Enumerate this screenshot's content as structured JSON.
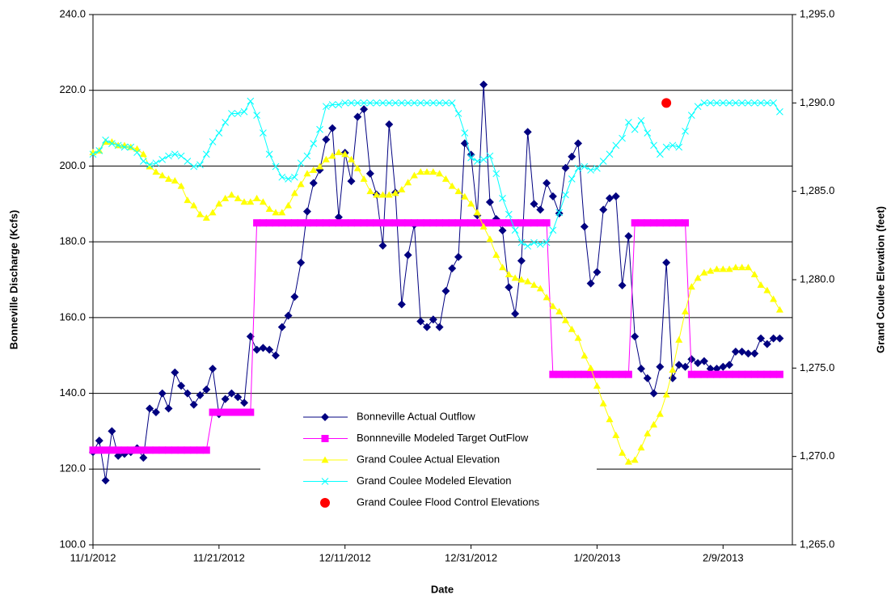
{
  "chart_data": {
    "type": "line",
    "xlabel": "Date",
    "ylabel": "Bonneville Discharge (Kcfs)",
    "y2label": "Grand Coulee Elevation (feet)",
    "x": [
      "11/1/2012",
      "11/2/2012",
      "11/3/2012",
      "11/4/2012",
      "11/5/2012",
      "11/6/2012",
      "11/7/2012",
      "11/8/2012",
      "11/9/2012",
      "11/10/2012",
      "11/11/2012",
      "11/12/2012",
      "11/13/2012",
      "11/14/2012",
      "11/15/2012",
      "11/16/2012",
      "11/17/2012",
      "11/18/2012",
      "11/19/2012",
      "11/20/2012",
      "11/21/2012",
      "11/22/2012",
      "11/23/2012",
      "11/24/2012",
      "11/25/2012",
      "11/26/2012",
      "11/27/2012",
      "11/28/2012",
      "11/29/2012",
      "11/30/2012",
      "12/1/2012",
      "12/2/2012",
      "12/3/2012",
      "12/4/2012",
      "12/5/2012",
      "12/6/2012",
      "12/7/2012",
      "12/8/2012",
      "12/9/2012",
      "12/10/2012",
      "12/11/2012",
      "12/12/2012",
      "12/13/2012",
      "12/14/2012",
      "12/15/2012",
      "12/16/2012",
      "12/17/2012",
      "12/18/2012",
      "12/19/2012",
      "12/20/2012",
      "12/21/2012",
      "12/22/2012",
      "12/23/2012",
      "12/24/2012",
      "12/25/2012",
      "12/26/2012",
      "12/27/2012",
      "12/28/2012",
      "12/29/2012",
      "12/30/2012",
      "12/31/2012",
      "1/1/2013",
      "1/2/2013",
      "1/3/2013",
      "1/4/2013",
      "1/5/2013",
      "1/6/2013",
      "1/7/2013",
      "1/8/2013",
      "1/9/2013",
      "1/10/2013",
      "1/11/2013",
      "1/12/2013",
      "1/13/2013",
      "1/14/2013",
      "1/15/2013",
      "1/16/2013",
      "1/17/2013",
      "1/18/2013",
      "1/19/2013",
      "1/20/2013",
      "1/21/2013",
      "1/22/2013",
      "1/23/2013",
      "1/24/2013",
      "1/25/2013",
      "1/26/2013",
      "1/27/2013",
      "1/28/2013",
      "1/29/2013",
      "1/30/2013",
      "1/31/2013",
      "2/1/2013",
      "2/2/2013",
      "2/3/2013",
      "2/4/2013",
      "2/5/2013",
      "2/6/2013",
      "2/7/2013",
      "2/8/2013",
      "2/9/2013",
      "2/10/2013",
      "2/11/2013",
      "2/12/2013",
      "2/13/2013",
      "2/14/2013",
      "2/15/2013",
      "2/16/2013",
      "2/17/2013",
      "2/18/2013"
    ],
    "xlim": [
      "11/1/2012",
      "2/20/2013"
    ],
    "xticks": [
      "11/1/2012",
      "11/21/2012",
      "12/11/2012",
      "12/31/2012",
      "1/20/2013",
      "2/9/2013"
    ],
    "ylim": [
      100,
      240
    ],
    "yticks": [
      {
        "value": 100,
        "label": "100.0"
      },
      {
        "value": 120,
        "label": "120.0"
      },
      {
        "value": 140,
        "label": "140.0"
      },
      {
        "value": 160,
        "label": "160.0"
      },
      {
        "value": 180,
        "label": "180.0"
      },
      {
        "value": 200,
        "label": "200.0"
      },
      {
        "value": 220,
        "label": "220.0"
      },
      {
        "value": 240,
        "label": "240.0"
      }
    ],
    "y2lim": [
      1265,
      1295
    ],
    "y2ticks": [
      {
        "value": 1265,
        "label": "1,265.0"
      },
      {
        "value": 1270,
        "label": "1,270.0"
      },
      {
        "value": 1275,
        "label": "1,275.0"
      },
      {
        "value": 1280,
        "label": "1,280.0"
      },
      {
        "value": 1285,
        "label": "1,285.0"
      },
      {
        "value": 1290,
        "label": "1,290.0"
      },
      {
        "value": 1295,
        "label": "1,295.0"
      }
    ],
    "grid": true,
    "series": [
      {
        "name": "Bonneville Actual Outflow",
        "color": "#000080",
        "marker": "diamond",
        "values": [
          124.5,
          127.5,
          117,
          130,
          123.5,
          124,
          124.5,
          125.5,
          123,
          136,
          135,
          140,
          136,
          145.5,
          142,
          140,
          137,
          139.5,
          141,
          146.5,
          134.5,
          138.5,
          140,
          139,
          137.5,
          155,
          151.5,
          152,
          151.5,
          150,
          157.5,
          160.5,
          165.5,
          174.5,
          188,
          195.5,
          199,
          207,
          210,
          186.5,
          203.5,
          196,
          213,
          215,
          198,
          192.5,
          179,
          211,
          193,
          163.5,
          176.5,
          184.5,
          159,
          157.5,
          159.5,
          157.5,
          167,
          173,
          176,
          206,
          203,
          187,
          221.5,
          190.5,
          186,
          183,
          168,
          161,
          175,
          209,
          190,
          188.5,
          195.5,
          192,
          187.5,
          199.5,
          202.5,
          206,
          184,
          169,
          172,
          188.5,
          191.5,
          192,
          168.5,
          181.5,
          155,
          146.5,
          144,
          140,
          147,
          174.5,
          144,
          147.5,
          147,
          149,
          148,
          148.5,
          146.5,
          146.5,
          147,
          147.5,
          151,
          151,
          150.5,
          150.5,
          154.5,
          153,
          154.5,
          154.5
        ]
      },
      {
        "name": "Bonnneville Modeled Target OutFlow",
        "color": "#ff00ff",
        "marker": "square",
        "values": [
          125,
          125,
          125,
          125,
          125,
          125,
          125,
          125,
          125,
          125,
          125,
          125,
          125,
          125,
          125,
          125,
          125,
          125,
          125,
          135,
          135,
          135,
          135,
          135,
          135,
          135,
          185,
          185,
          185,
          185,
          185,
          185,
          185,
          185,
          185,
          185,
          185,
          185,
          185,
          185,
          185,
          185,
          185,
          185,
          185,
          185,
          185,
          185,
          185,
          185,
          185,
          185,
          185,
          185,
          185,
          185,
          185,
          185,
          185,
          185,
          185,
          185,
          185,
          185,
          185,
          185,
          185,
          185,
          185,
          185,
          185,
          185,
          185,
          145,
          145,
          145,
          145,
          145,
          145,
          145,
          145,
          145,
          145,
          145,
          145,
          145,
          185,
          185,
          185,
          185,
          185,
          185,
          185,
          185,
          185,
          145,
          145,
          145,
          145,
          145,
          145,
          145,
          145,
          145,
          145,
          145,
          145,
          145,
          145,
          145
        ]
      },
      {
        "name": "Grand Coulee Actual Elevation",
        "color": "#ffff00",
        "marker": "triangle",
        "axis": "y2",
        "values": [
          1287.2,
          1287.3,
          1287.8,
          1287.8,
          1287.6,
          1287.6,
          1287.5,
          1287.4,
          1287.1,
          1286.4,
          1286.1,
          1285.9,
          1285.7,
          1285.6,
          1285.3,
          1284.5,
          1284.2,
          1283.7,
          1283.5,
          1283.8,
          1284.3,
          1284.6,
          1284.8,
          1284.6,
          1284.4,
          1284.4,
          1284.6,
          1284.4,
          1284.0,
          1283.8,
          1283.8,
          1284.2,
          1284.9,
          1285.4,
          1286.0,
          1286.2,
          1286.4,
          1286.8,
          1287.0,
          1287.2,
          1287.1,
          1286.8,
          1286.3,
          1285.7,
          1285.0,
          1284.8,
          1284.8,
          1284.8,
          1284.9,
          1285.1,
          1285.5,
          1285.9,
          1286.1,
          1286.1,
          1286.1,
          1286.0,
          1285.7,
          1285.3,
          1285.0,
          1284.7,
          1284.3,
          1283.8,
          1283.0,
          1282.3,
          1281.4,
          1280.7,
          1280.3,
          1280.1,
          1280.0,
          1279.9,
          1279.7,
          1279.5,
          1279.0,
          1278.5,
          1278.2,
          1277.7,
          1277.2,
          1276.7,
          1275.7,
          1275.0,
          1274.0,
          1273.0,
          1272.1,
          1271.2,
          1270.2,
          1269.7,
          1269.8,
          1270.5,
          1271.3,
          1271.8,
          1272.4,
          1273.5,
          1274.9,
          1276.6,
          1278.2,
          1279.6,
          1280.1,
          1280.4,
          1280.5,
          1280.6,
          1280.6,
          1280.6,
          1280.7,
          1280.7,
          1280.7,
          1280.3,
          1279.7,
          1279.4,
          1278.9,
          1278.3
        ]
      },
      {
        "name": "Grand Coulee Modeled Elevation",
        "color": "#00ffff",
        "marker": "x",
        "axis": "y2",
        "values": [
          1287.1,
          1287.3,
          1287.9,
          1287.7,
          1287.6,
          1287.5,
          1287.5,
          1287.2,
          1286.7,
          1286.5,
          1286.6,
          1286.8,
          1287.0,
          1287.1,
          1287.0,
          1286.7,
          1286.4,
          1286.5,
          1287.1,
          1287.8,
          1288.3,
          1288.9,
          1289.4,
          1289.4,
          1289.5,
          1290.1,
          1289.3,
          1288.3,
          1287.1,
          1286.4,
          1285.8,
          1285.7,
          1285.8,
          1286.6,
          1287.0,
          1287.7,
          1288.5,
          1289.8,
          1289.9,
          1289.9,
          1290.0,
          1290.0,
          1290.0,
          1290.0,
          1290.0,
          1290.0,
          1290.0,
          1290.0,
          1290.0,
          1290.0,
          1290.0,
          1290.0,
          1290.0,
          1290.0,
          1290.0,
          1290.0,
          1290.0,
          1290.0,
          1289.4,
          1288.3,
          1286.9,
          1286.7,
          1286.8,
          1287.0,
          1286.0,
          1284.6,
          1283.7,
          1282.8,
          1282.1,
          1281.9,
          1282.1,
          1282.0,
          1282.1,
          1282.8,
          1283.8,
          1284.8,
          1285.7,
          1286.3,
          1286.4,
          1286.2,
          1286.3,
          1286.7,
          1287.1,
          1287.6,
          1288.0,
          1288.9,
          1288.5,
          1289.0,
          1288.3,
          1287.6,
          1287.1,
          1287.5,
          1287.6,
          1287.5,
          1288.4,
          1289.3,
          1289.8,
          1290.0,
          1290.0,
          1290.0,
          1290.0,
          1290.0,
          1290.0,
          1290.0,
          1290.0,
          1290.0,
          1290.0,
          1290.0,
          1290.0,
          1289.5
        ]
      },
      {
        "name": "Grand Coulee Flood Control Elevations",
        "color": "#ff0000",
        "marker": "circle",
        "axis": "y2",
        "line": false,
        "x": [
          "1/31/2013"
        ],
        "values": [
          1290.0
        ]
      }
    ]
  }
}
